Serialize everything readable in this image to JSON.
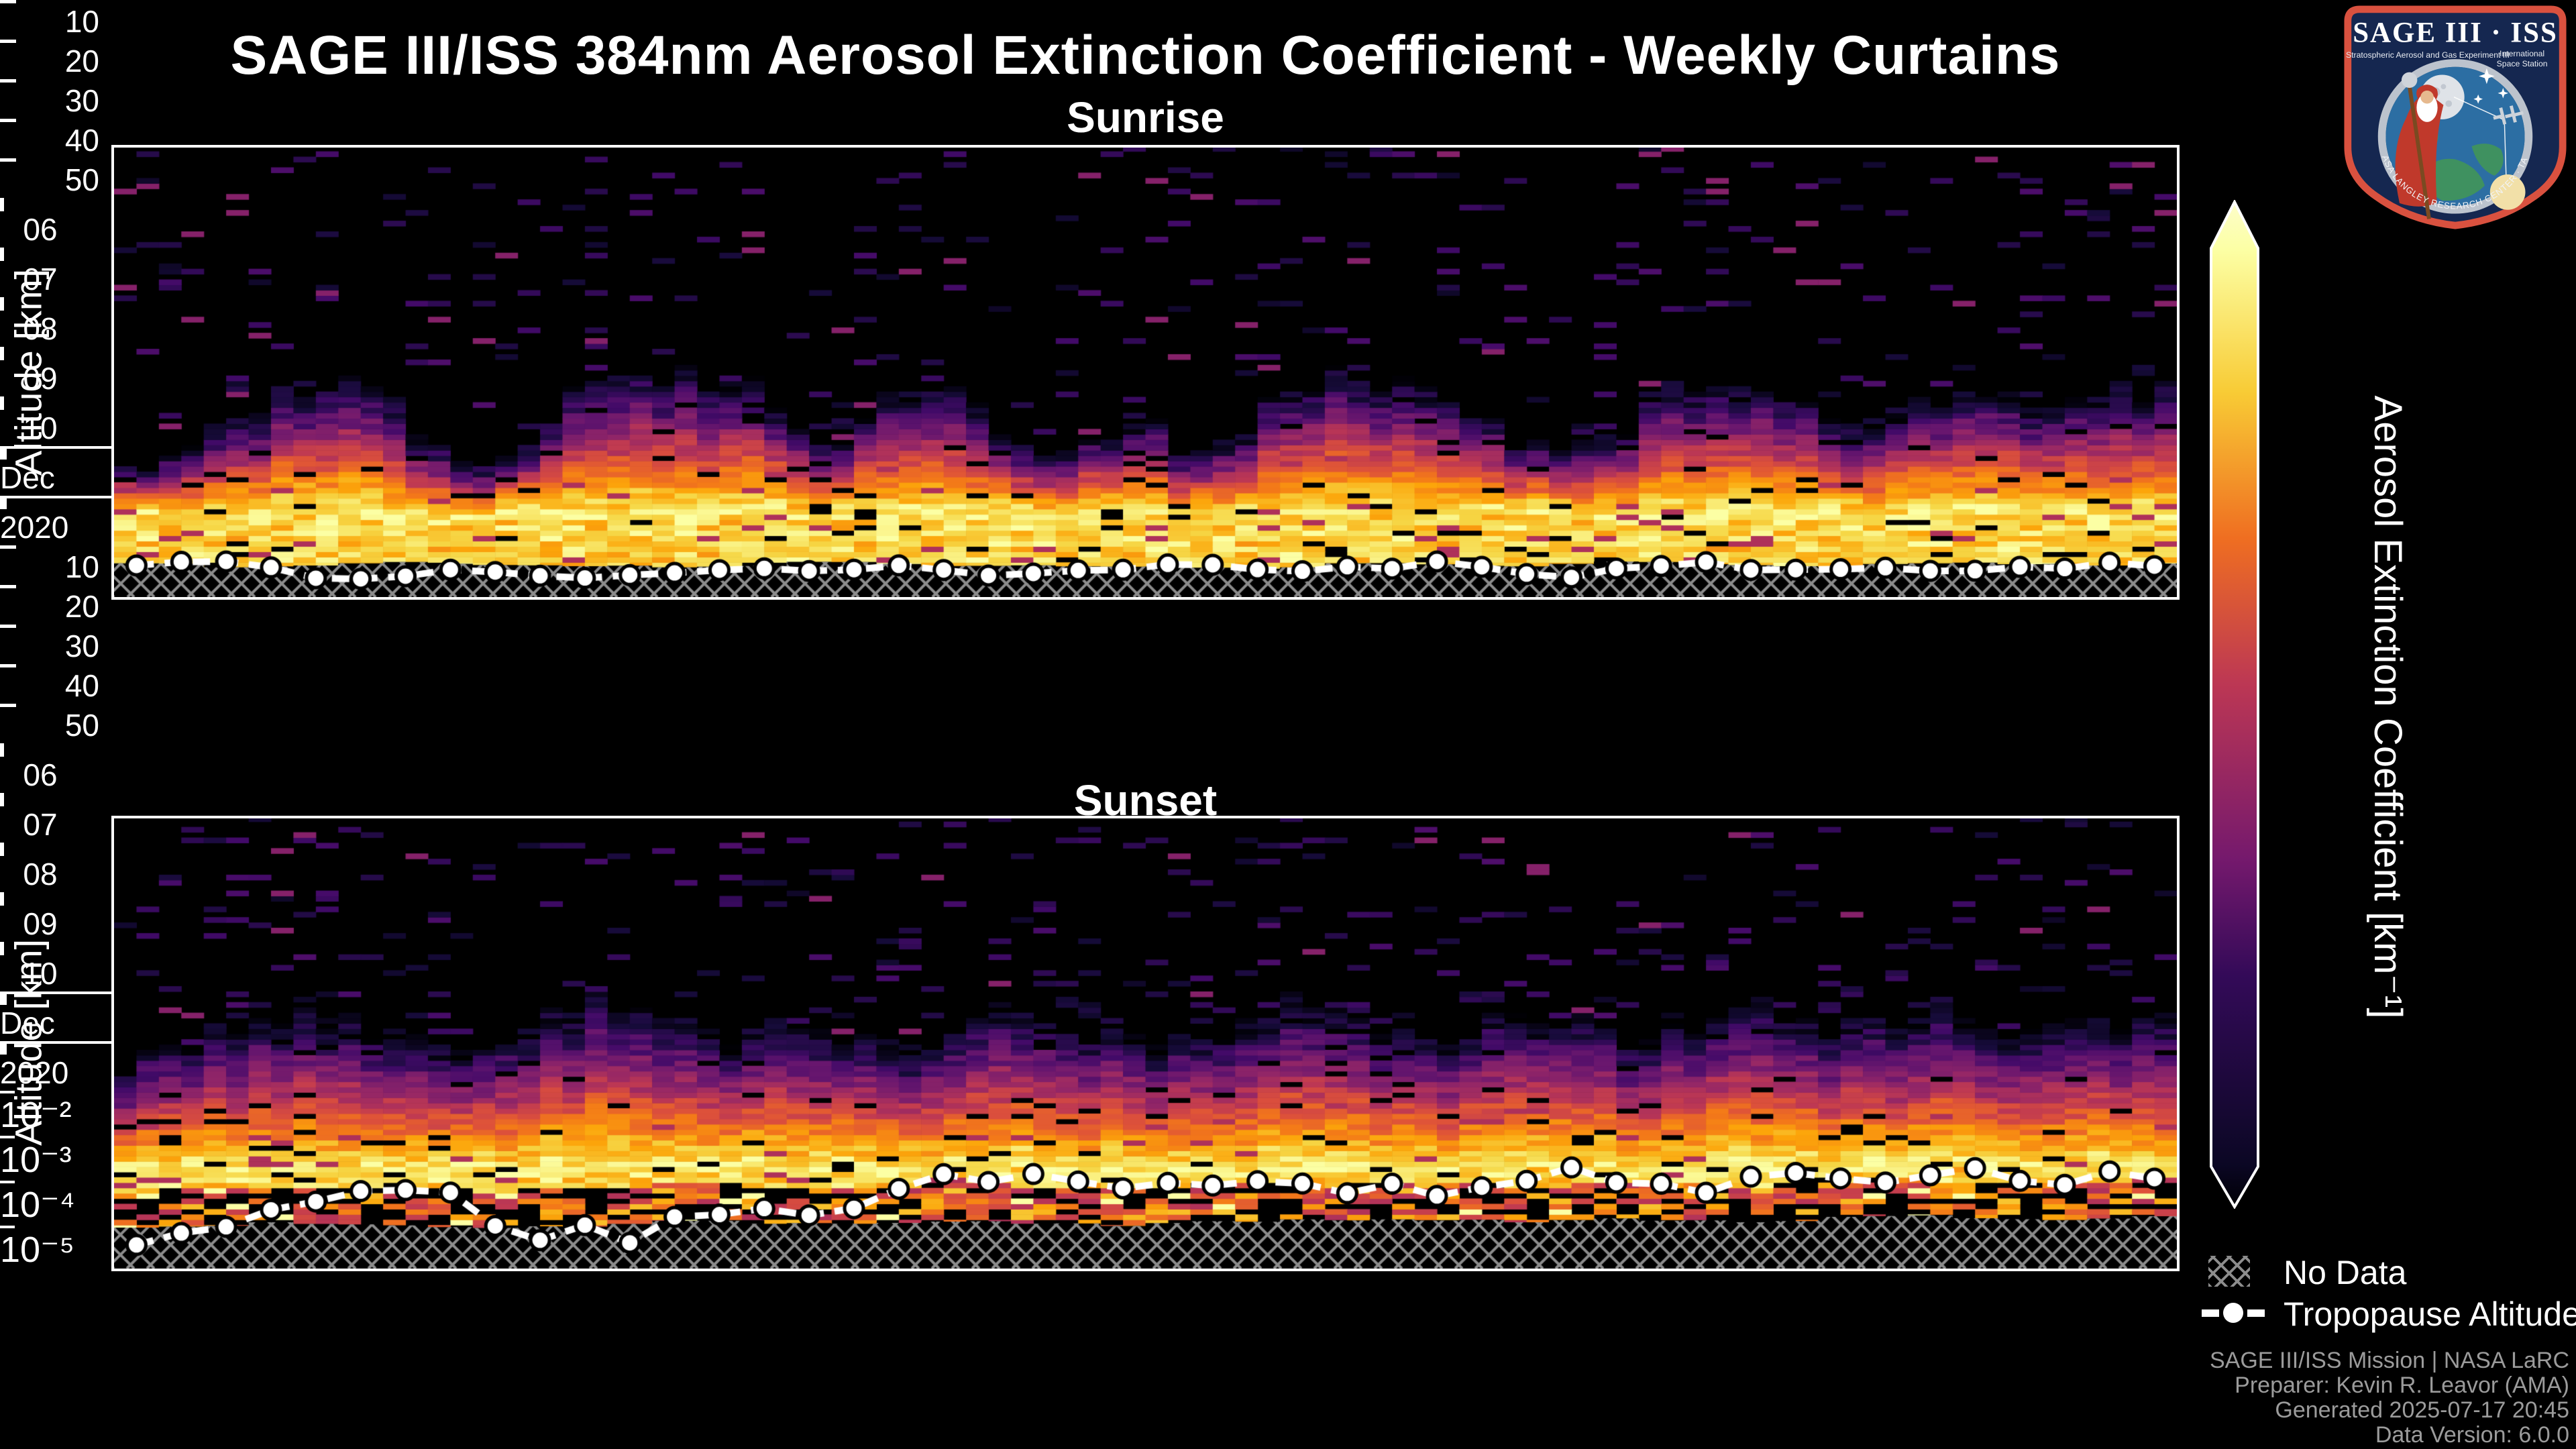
{
  "page": {
    "background": "#000000"
  },
  "header": {
    "title": "SAGE III/ISS 384nm Aerosol Extinction Coefficient - Weekly Curtains",
    "logo": {
      "title": "SAGE III · ISS",
      "subtitle_left": "Stratospheric Aerosol and Gas Experiment III",
      "subtitle_right_1": "International",
      "subtitle_right_2": "Space Station",
      "ring_text": "BALL · NASA LANGLEY RESEARCH CENTER · TAS-I · ESA",
      "border_color": "#d9513f",
      "field_color": "#152750"
    }
  },
  "axes": {
    "y_label": "Altitude [km]",
    "y_ticks_km": [
      50,
      40,
      30,
      20,
      10
    ],
    "x_tick_labels": [
      "06",
      "07",
      "08",
      "09",
      "10"
    ],
    "x_tick_days": [
      6,
      7,
      8,
      9,
      10
    ],
    "month_label": "Dec",
    "year_label": "2020"
  },
  "colorbar": {
    "label": "Aerosol Extinction Coefficient [km⁻¹]",
    "tick_labels": [
      "10⁻²",
      "10⁻³",
      "10⁻⁴",
      "10⁻⁵"
    ],
    "tick_log10_values": [
      -2,
      -3,
      -4,
      -5
    ],
    "scale": "log",
    "gradient_stops": [
      [
        0,
        "#fdfeca"
      ],
      [
        0.048,
        "#fcffa4"
      ],
      [
        0.19,
        "#f8cb35"
      ],
      [
        0.335,
        "#ef6e21"
      ],
      [
        0.48,
        "#bc3754"
      ],
      [
        0.654,
        "#75196d"
      ],
      [
        0.77,
        "#330a58"
      ],
      [
        0.958,
        "#0b0724"
      ],
      [
        1,
        "#000004"
      ]
    ]
  },
  "legend": {
    "no_data": "No Data",
    "tropopause": "Tropopause Altitude"
  },
  "attribution": [
    "SAGE III/ISS Mission | NASA LaRC",
    "Preparer: Kevin R. Leavor (AMA)",
    "Generated 2025-07-17 20:45",
    "Data Version: 6.0.0"
  ],
  "colormap_anchors": [
    [
      0,
      "#000004"
    ],
    [
      0.1,
      "#160b39"
    ],
    [
      0.2,
      "#420a68"
    ],
    [
      0.3,
      "#6a176e"
    ],
    [
      0.4,
      "#932667"
    ],
    [
      0.5,
      "#bc3754"
    ],
    [
      0.6,
      "#dd513a"
    ],
    [
      0.7,
      "#f37819"
    ],
    [
      0.8,
      "#fca50a"
    ],
    [
      0.9,
      "#f6d746"
    ],
    [
      1,
      "#fcffa4"
    ]
  ],
  "chart_data": [
    {
      "type": "heatmap",
      "title": "Sunrise",
      "x_axis": {
        "month": "Dec",
        "year": "2020",
        "domain_day_of_month": [
          5.93,
          10.24
        ],
        "tick_days": [
          6,
          7,
          8,
          9,
          10
        ]
      },
      "y_axis": {
        "label": "Altitude [km]",
        "range_km": [
          8.25,
          50.35
        ],
        "ticks_km": [
          10,
          20,
          30,
          40,
          50
        ]
      },
      "value": "aerosol extinction coefficient, log10 scale -5 to -2 [km⁻¹]",
      "n_columns": 92,
      "seed": 11,
      "plume_top_km": [
        20.5,
        22,
        26,
        28.5,
        28,
        21,
        20.5,
        27.5,
        29,
        28.5,
        28,
        21,
        26.5,
        27.5,
        21.5,
        22.5,
        25,
        20,
        27,
        29,
        28.5,
        26,
        22,
        21.5,
        27,
        29,
        28,
        24,
        26.5,
        27.5,
        26,
        27.5,
        28
      ],
      "bright_base_km": 15.5,
      "no_data_top_km": [
        11.4,
        11.0,
        11.6,
        11.2,
        10.9,
        11.5,
        11.1,
        11.3,
        10.8,
        11.4,
        11.2,
        11.6,
        11.0,
        11.3,
        11.5,
        11.2
      ],
      "tropopause_km": [
        11.5,
        12.0,
        10.8,
        10.1,
        10.5,
        11.0,
        10.2,
        9.8,
        10.6,
        11.1,
        10.4,
        11.3,
        10.8,
        10.0,
        10.6,
        11.2,
        10.9,
        10.3,
        11.0,
        11.5,
        10.7,
        10.1,
        10.8,
        11.3,
        10.5,
        10.9,
        11.1,
        10.4,
        11.0,
        11.4,
        10.8
      ],
      "speckle_fraction": 0.055,
      "low_region": false,
      "yellow_streaks": false
    },
    {
      "type": "heatmap",
      "title": "Sunset",
      "x_axis": {
        "month": "Dec",
        "year": "2020",
        "domain_day_of_month": [
          5.93,
          10.24
        ],
        "tick_days": [
          6,
          7,
          8,
          9,
          10
        ]
      },
      "y_axis": {
        "label": "Altitude [km]",
        "range_km": [
          7.9,
          50.3
        ],
        "ticks_km": [
          10,
          20,
          30,
          40,
          50
        ]
      },
      "value": "aerosol extinction coefficient, log10 scale -5 to -2 [km⁻¹]",
      "n_columns": 92,
      "seed": 23,
      "plume_top_km": [
        27,
        29,
        31.5,
        32,
        30,
        28,
        31,
        33,
        32,
        29.5,
        31,
        30,
        28.5,
        32,
        31.5,
        30,
        29,
        31.5,
        33,
        31,
        30,
        32,
        31,
        29.5,
        31.5,
        32.5,
        30.5,
        31,
        32,
        30,
        31.5,
        32
      ],
      "bright_base_km": 16.5,
      "no_data_top_km": [
        11.9,
        12.2,
        12.0,
        11.8,
        12.3,
        12.1,
        12.4,
        12.0,
        12.2,
        12.5,
        12.3,
        12.6,
        12.4,
        12.8,
        12.5,
        12.7
      ],
      "tropopause_km": [
        10.4,
        11.0,
        11.6,
        13.4,
        14.3,
        14.7,
        15.3,
        15.0,
        14.8,
        11.2,
        10.4,
        11.8,
        9.8,
        12.4,
        13.1,
        13.5,
        13.8,
        12.3,
        14.1,
        16.0,
        16.8,
        15.7,
        17.0,
        16.3,
        15.6,
        15.9,
        15.2,
        15.7,
        16.3,
        15.0,
        15.4,
        15.7,
        14.9,
        15.5,
        16.1,
        17.3,
        16.0,
        16.2,
        14.8,
        15.9,
        16.5,
        17.0,
        16.2,
        15.7,
        16.8,
        17.1,
        16.4,
        15.6,
        16.6,
        16.9,
        16.3
      ],
      "speckle_fraction": 0.07,
      "low_region": true,
      "yellow_streaks": true
    }
  ]
}
